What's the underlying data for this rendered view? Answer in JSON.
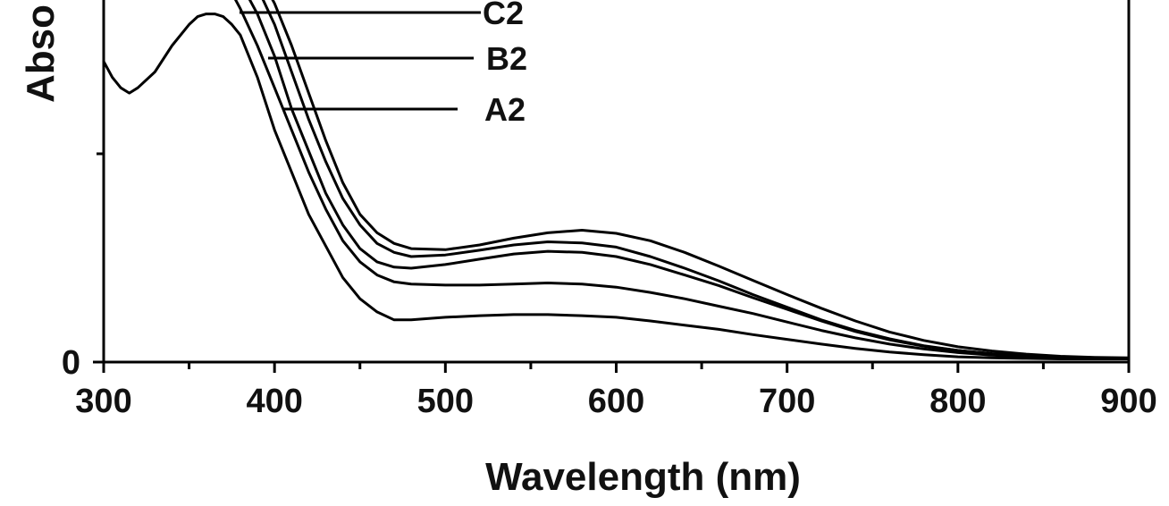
{
  "chart_data": {
    "type": "line",
    "xlabel": "Wavelength (nm)",
    "ylabel": "Abso",
    "xlim": [
      300,
      900
    ],
    "ylim": [
      0,
      1.0
    ],
    "x_ticks": [
      300,
      400,
      500,
      600,
      700,
      800,
      900
    ],
    "x_minor_ticks": [
      350,
      450,
      550,
      650,
      750,
      850
    ],
    "y_ticks": [
      0
    ],
    "y_tick_labels": [
      "0"
    ],
    "grid": false,
    "legend": [
      {
        "label": "C2",
        "series_index": 4
      },
      {
        "label": "B2",
        "series_index": 3
      },
      {
        "label": "A2",
        "series_index": 2
      }
    ],
    "series": [
      {
        "x": [
          300,
          305,
          310,
          315,
          320,
          330,
          340,
          350,
          355,
          360,
          365,
          370,
          375,
          380,
          390,
          400,
          410,
          420,
          430,
          440,
          450,
          460,
          470,
          480,
          500,
          520,
          540,
          560,
          580,
          600,
          620,
          640,
          660,
          680,
          700,
          720,
          740,
          760,
          780,
          800,
          820,
          840,
          860,
          880,
          900
        ],
        "y": [
          0.57,
          0.54,
          0.52,
          0.51,
          0.52,
          0.55,
          0.6,
          0.64,
          0.655,
          0.66,
          0.66,
          0.655,
          0.64,
          0.62,
          0.54,
          0.44,
          0.36,
          0.28,
          0.22,
          0.16,
          0.12,
          0.095,
          0.08,
          0.08,
          0.085,
          0.088,
          0.09,
          0.09,
          0.088,
          0.085,
          0.078,
          0.07,
          0.062,
          0.052,
          0.043,
          0.034,
          0.026,
          0.019,
          0.014,
          0.01,
          0.008,
          0.007,
          0.006,
          0.006,
          0.006
        ]
      },
      {
        "x": [
          375,
          380,
          390,
          400,
          410,
          420,
          430,
          440,
          450,
          460,
          470,
          480,
          500,
          520,
          540,
          560,
          580,
          600,
          620,
          640,
          660,
          680,
          700,
          720,
          740,
          760,
          780,
          800,
          820,
          840,
          860,
          880,
          900
        ],
        "y": [
          0.7,
          0.67,
          0.6,
          0.52,
          0.44,
          0.36,
          0.29,
          0.23,
          0.19,
          0.165,
          0.152,
          0.148,
          0.146,
          0.146,
          0.148,
          0.15,
          0.148,
          0.142,
          0.132,
          0.12,
          0.106,
          0.092,
          0.076,
          0.06,
          0.046,
          0.034,
          0.025,
          0.018,
          0.013,
          0.01,
          0.008,
          0.007,
          0.007
        ]
      },
      {
        "x": [
          380,
          390,
          400,
          410,
          420,
          430,
          440,
          450,
          460,
          470,
          480,
          500,
          520,
          540,
          560,
          580,
          600,
          620,
          640,
          660,
          680,
          700,
          720,
          740,
          760,
          780,
          800,
          820,
          840,
          860,
          880,
          900
        ],
        "y": [
          0.72,
          0.66,
          0.58,
          0.48,
          0.4,
          0.32,
          0.26,
          0.215,
          0.19,
          0.18,
          0.178,
          0.185,
          0.195,
          0.205,
          0.21,
          0.208,
          0.2,
          0.185,
          0.165,
          0.145,
          0.122,
          0.1,
          0.078,
          0.058,
          0.042,
          0.03,
          0.022,
          0.016,
          0.012,
          0.009,
          0.008,
          0.007
        ]
      },
      {
        "x": [
          385,
          390,
          400,
          410,
          420,
          430,
          440,
          450,
          460,
          470,
          480,
          500,
          520,
          540,
          560,
          580,
          600,
          620,
          640,
          660,
          680,
          700,
          720,
          740,
          760,
          780,
          800,
          820,
          840,
          860,
          880,
          900
        ],
        "y": [
          0.74,
          0.71,
          0.64,
          0.55,
          0.46,
          0.38,
          0.31,
          0.26,
          0.225,
          0.208,
          0.2,
          0.203,
          0.212,
          0.222,
          0.228,
          0.226,
          0.218,
          0.2,
          0.178,
          0.154,
          0.128,
          0.104,
          0.08,
          0.06,
          0.044,
          0.031,
          0.022,
          0.016,
          0.012,
          0.009,
          0.008,
          0.007
        ]
      },
      {
        "x": [
          390,
          400,
          410,
          420,
          430,
          440,
          450,
          460,
          470,
          480,
          500,
          520,
          540,
          560,
          580,
          600,
          620,
          640,
          660,
          680,
          700,
          720,
          740,
          760,
          780,
          800,
          820,
          840,
          860,
          880,
          900
        ],
        "y": [
          0.74,
          0.68,
          0.6,
          0.51,
          0.42,
          0.34,
          0.28,
          0.245,
          0.225,
          0.215,
          0.213,
          0.222,
          0.235,
          0.245,
          0.25,
          0.244,
          0.23,
          0.208,
          0.182,
          0.155,
          0.128,
          0.102,
          0.078,
          0.057,
          0.041,
          0.029,
          0.021,
          0.015,
          0.011,
          0.009,
          0.008
        ]
      }
    ]
  }
}
